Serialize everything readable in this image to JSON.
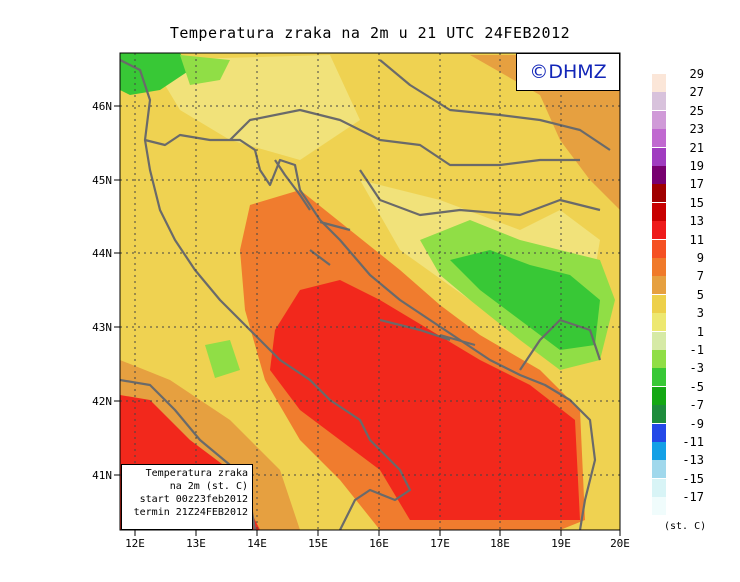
{
  "title": "Temperatura zraka na 2m u 21 UTC 24FEB2012",
  "logo_text": "©DHMZ",
  "info_box": {
    "line1": "Temperatura zraka",
    "line2": "na 2m (st. C)",
    "line3": "start 00z23feb2012",
    "line4": "termin 21Z24FEB2012"
  },
  "lat_labels": [
    "46N",
    "45N",
    "44N",
    "43N",
    "42N",
    "41N"
  ],
  "lon_labels": [
    "12E",
    "13E",
    "14E",
    "15E",
    "16E",
    "17E",
    "18E",
    "19E",
    "20E"
  ],
  "legend": {
    "units": "(st. C)",
    "labels": [
      "29",
      "27",
      "25",
      "23",
      "21",
      "19",
      "17",
      "15",
      "13",
      "11",
      "9",
      "7",
      "5",
      "3",
      "1",
      "-1",
      "-3",
      "-5",
      "-7",
      "-9",
      "-11",
      "-13",
      "-15",
      "-17"
    ],
    "colors": [
      "#fbe6d8",
      "#d8c2dc",
      "#d09ad8",
      "#c069d0",
      "#a03cc0",
      "#780070",
      "#a00000",
      "#c80000",
      "#ee1a1a",
      "#f55022",
      "#f07a2a",
      "#e6a040",
      "#edd04a",
      "#ede870",
      "#d6eaa6",
      "#90de46",
      "#38c836",
      "#14a814",
      "#1e8c3c",
      "#2448e8",
      "#14a0e6",
      "#a0d8ec",
      "#d8f4f6",
      "#f0fcfc"
    ]
  },
  "colors": {
    "land": "#efd251",
    "sea_warm": "#f07c2e",
    "sea_hot": "#f2281c",
    "cold": "#38c836",
    "coast": "#6a6a6a"
  }
}
